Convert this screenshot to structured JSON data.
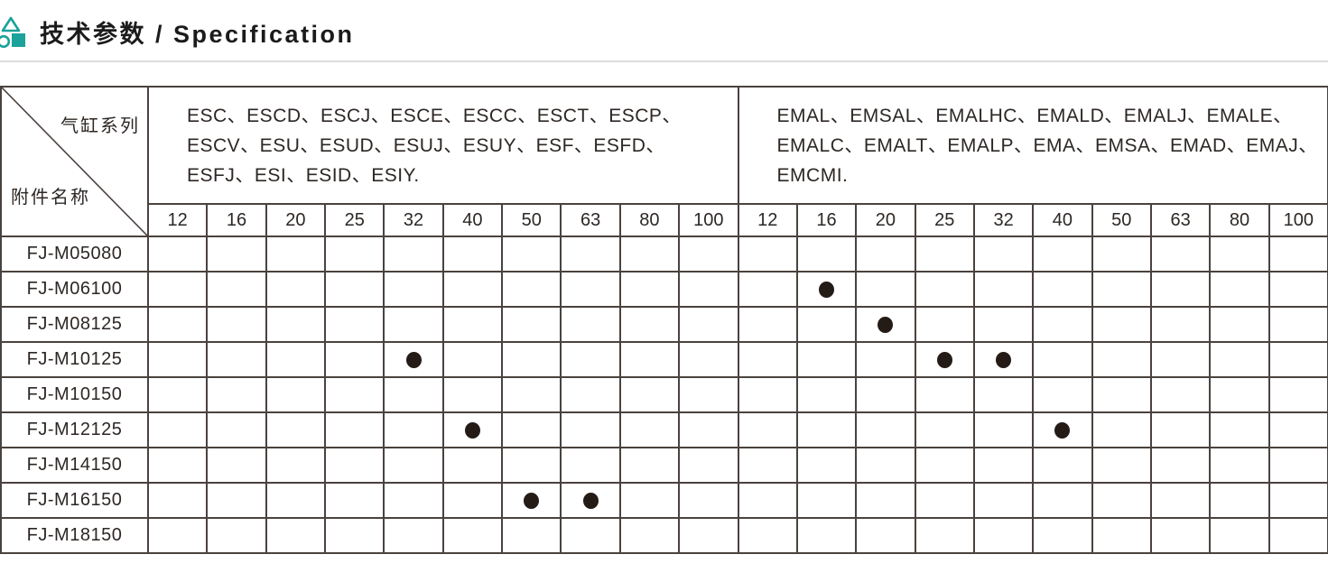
{
  "header": {
    "title": "技术参数 / Specification",
    "accent_color": "#1aa29b",
    "icon": "geometric-shapes-icon"
  },
  "table": {
    "corner": {
      "top_right": "气缸系列",
      "bottom_left": "附件名称"
    },
    "grid_color": "#4a423e",
    "dot_color": "#241b17",
    "groups": [
      {
        "name": "ESC-series-group",
        "series_lines": [
          "ESC、ESCD、ESCJ、ESCE、ESCC、ESCT、ESCP、",
          "ESCV、ESU、ESUD、ESUJ、ESUY、ESF、ESFD、",
          "ESFJ、ESI、ESID、ESIY."
        ],
        "sizes": [
          "12",
          "16",
          "20",
          "25",
          "32",
          "40",
          "50",
          "63",
          "80",
          "100"
        ]
      },
      {
        "name": "EMAL-series-group",
        "series_lines": [
          "EMAL、EMSAL、EMALHC、EMALD、EMALJ、EMALE、",
          "EMALC、EMALT、EMALP、EMA、EMSA、EMAD、EMAJ、",
          "EMCMI."
        ],
        "sizes": [
          "12",
          "16",
          "20",
          "25",
          "32",
          "40",
          "50",
          "63",
          "80",
          "100"
        ]
      }
    ],
    "rows": [
      {
        "label": "FJ-M05080",
        "marks": {
          "group1": [],
          "group2": []
        }
      },
      {
        "label": "FJ-M06100",
        "marks": {
          "group1": [],
          "group2": [
            "16"
          ]
        }
      },
      {
        "label": "FJ-M08125",
        "marks": {
          "group1": [],
          "group2": [
            "20"
          ]
        }
      },
      {
        "label": "FJ-M10125",
        "marks": {
          "group1": [
            "32"
          ],
          "group2": [
            "25",
            "32"
          ]
        }
      },
      {
        "label": "FJ-M10150",
        "marks": {
          "group1": [],
          "group2": []
        }
      },
      {
        "label": "FJ-M12125",
        "marks": {
          "group1": [
            "40"
          ],
          "group2": [
            "40"
          ]
        }
      },
      {
        "label": "FJ-M14150",
        "marks": {
          "group1": [],
          "group2": []
        }
      },
      {
        "label": "FJ-M16150",
        "marks": {
          "group1": [
            "50",
            "63"
          ],
          "group2": []
        }
      },
      {
        "label": "FJ-M18150",
        "marks": {
          "group1": [],
          "group2": []
        }
      }
    ]
  }
}
